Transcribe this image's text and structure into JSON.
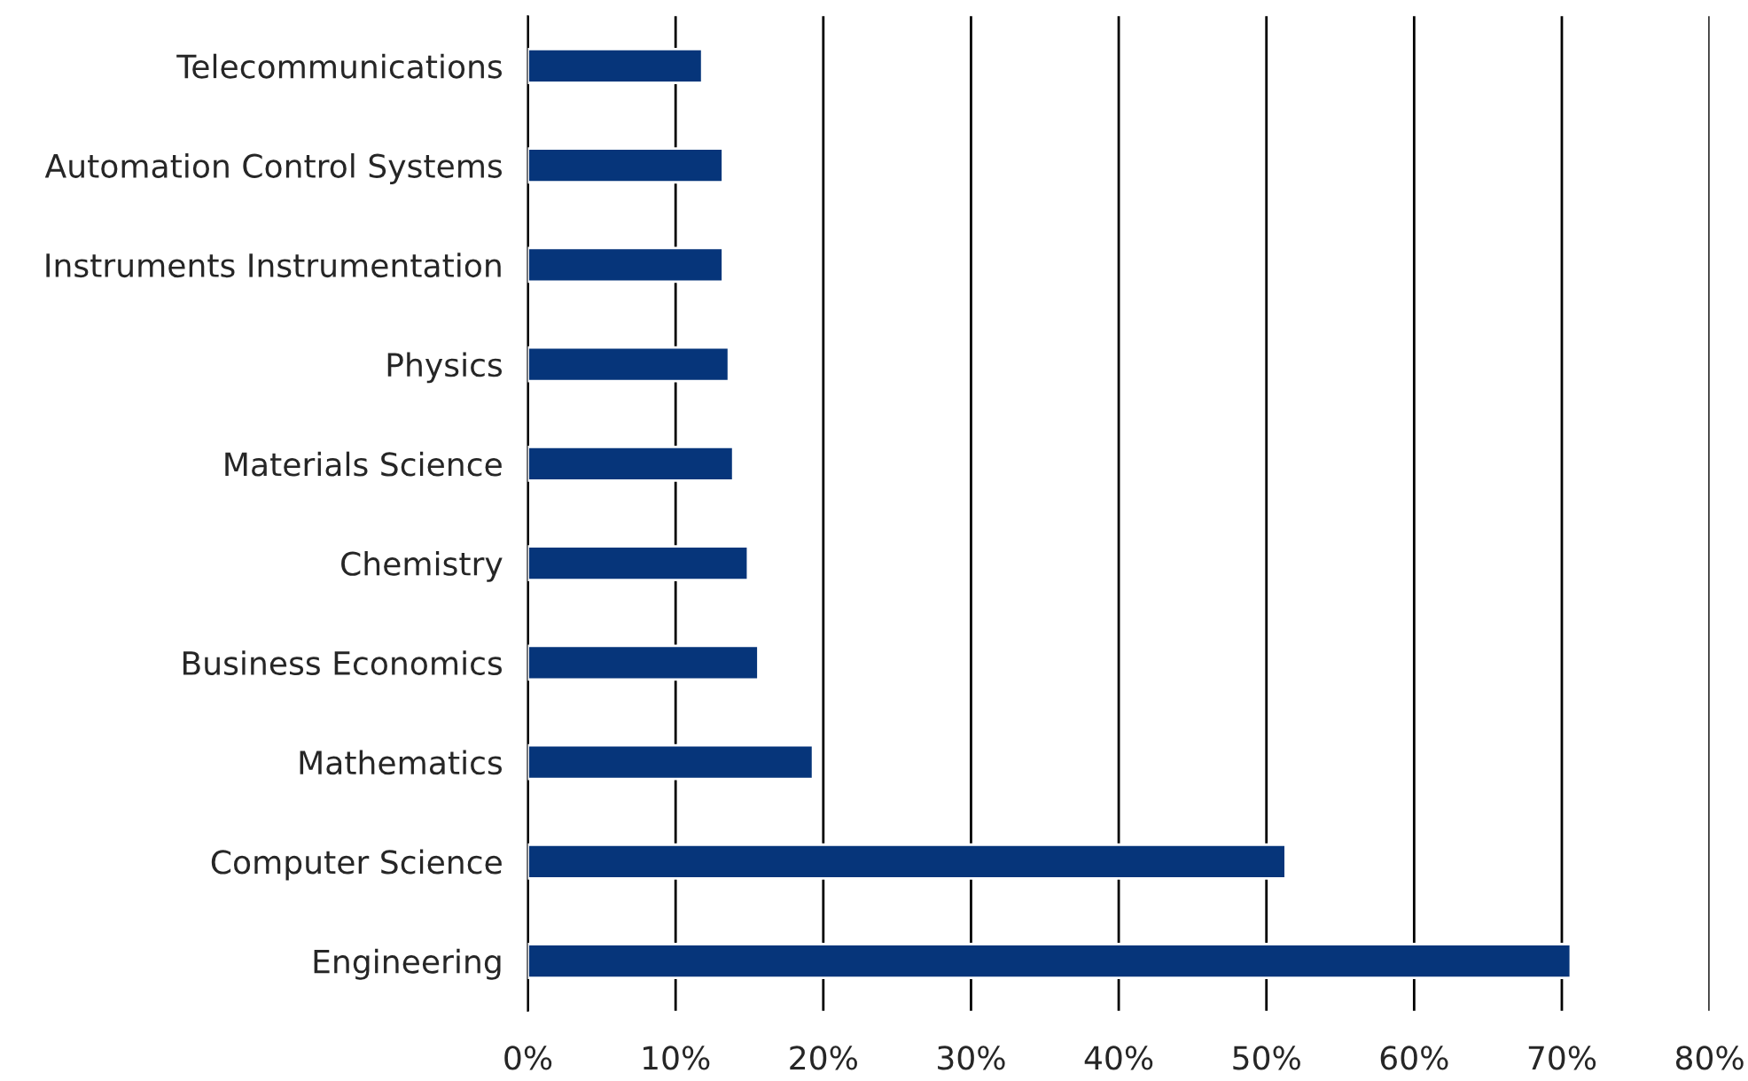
{
  "chart_data": {
    "type": "bar",
    "orientation": "horizontal",
    "categories": [
      "Telecommunications",
      "Automation Control Systems",
      "Instruments Instrumentation",
      "Physics",
      "Materials Science",
      "Chemistry",
      "Business Economics",
      "Mathematics",
      "Computer Science",
      "Engineering"
    ],
    "values": [
      11.8,
      13.2,
      13.2,
      13.6,
      13.9,
      14.9,
      15.6,
      19.3,
      51.3,
      70.6
    ],
    "color": "#06357a",
    "xlim": [
      0,
      80
    ],
    "xticks": [
      {
        "value": 0,
        "label": "0%"
      },
      {
        "value": 10,
        "label": "10%"
      },
      {
        "value": 20,
        "label": "20%"
      },
      {
        "value": 30,
        "label": "30%"
      },
      {
        "value": 40,
        "label": "40%"
      },
      {
        "value": 50,
        "label": "50%"
      },
      {
        "value": 60,
        "label": "60%"
      },
      {
        "value": 70,
        "label": "70%"
      },
      {
        "value": 80,
        "label": "80%"
      }
    ],
    "grid": "x"
  }
}
